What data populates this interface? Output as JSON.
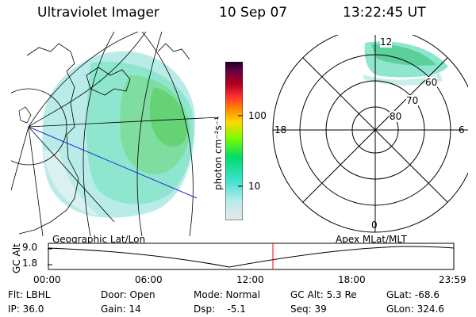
{
  "header": {
    "instrument": "Ultraviolet Imager",
    "date": "10 Sep 07",
    "time": "13:22:45 UT"
  },
  "colorbar": {
    "unit_label": "photon cm⁻²s⁻¹",
    "ticks": [
      "100",
      "10"
    ],
    "colors": [
      "#e8e8e8",
      "#40e0d0",
      "#7cfc00",
      "#ffd700",
      "#ff8c00",
      "#dc143c",
      "#8b0000",
      "#2a0040"
    ]
  },
  "polar_plot": {
    "clock_labels": {
      "top": "12",
      "left": "18",
      "right": "6",
      "bottom": "0"
    },
    "lat_labels": [
      "60",
      "70",
      "80"
    ]
  },
  "map_caption": "Geographic Lat/Lon",
  "polar_caption": "Apex  MLat/MLT",
  "altitude_plot": {
    "y_title": "GC Alt",
    "y_ticks": [
      "9.0",
      "1.8"
    ],
    "x_ticks": [
      "00:00",
      "06:00",
      "12:00",
      "18:00",
      "23:59"
    ],
    "marker_time": "13:22:45",
    "marker_color": "#ff0000"
  },
  "info": {
    "row1": {
      "flt": "Flt: LBHL",
      "door": "Door: Open",
      "mode": "Mode: Normal",
      "gc_alt": "GC Alt: 5.3 Re",
      "glat": "GLat: -68.6"
    },
    "row2": {
      "ip": "IP: 36.0",
      "gain": "Gain: 14",
      "dsp": "Dsp:    -5.1",
      "seq": "Seq: 39",
      "glon": "GLon: 324.6"
    }
  }
}
